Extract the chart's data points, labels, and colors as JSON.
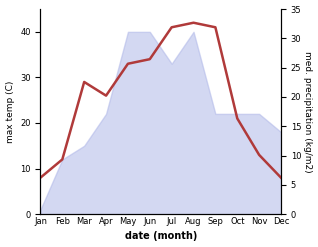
{
  "months": [
    "Jan",
    "Feb",
    "Mar",
    "Apr",
    "May",
    "Jun",
    "Jul",
    "Aug",
    "Sep",
    "Oct",
    "Nov",
    "Dec"
  ],
  "temperature": [
    8,
    12,
    29,
    26,
    33,
    34,
    41,
    42,
    41,
    21,
    13,
    8
  ],
  "precipitation_left_scale": [
    1,
    12,
    15,
    22,
    40,
    40,
    33,
    40,
    22,
    22,
    22,
    18
  ],
  "temp_color": "#b03a3a",
  "precip_color": "#b0b8e8",
  "precip_alpha": 0.55,
  "xlabel": "date (month)",
  "ylabel_left": "max temp (C)",
  "ylabel_right": "med. precipitation (kg/m2)",
  "ylim_left": [
    0,
    45
  ],
  "ylim_right": [
    0,
    35
  ],
  "yticks_left": [
    0,
    10,
    20,
    30,
    40
  ],
  "yticks_right": [
    0,
    5,
    10,
    15,
    20,
    25,
    30,
    35
  ],
  "background_color": "#ffffff",
  "linewidth": 1.8,
  "xlabel_fontsize": 7,
  "ylabel_fontsize": 6.5,
  "tick_fontsize": 6
}
